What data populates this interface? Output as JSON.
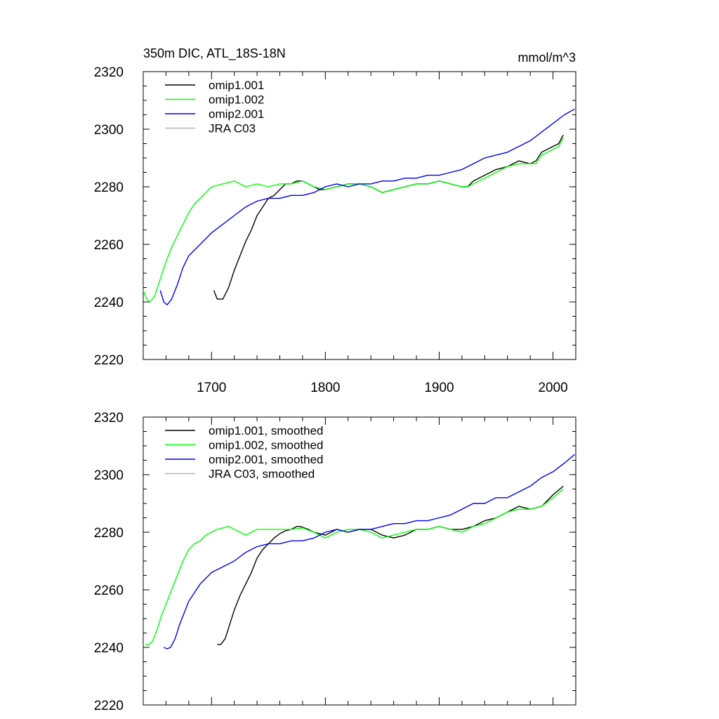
{
  "chart_data": [
    {
      "type": "line",
      "title": "350m DIC, ATL_18S-18N",
      "units": "mmol/m^3",
      "xlim": [
        1640,
        2020
      ],
      "ylim": [
        2220,
        2320
      ],
      "xticks": [
        "1700",
        "1800",
        "1900",
        "2000"
      ],
      "yticks": [
        "2220",
        "2240",
        "2260",
        "2280",
        "2300",
        "2320"
      ],
      "legend": [
        "omip1.001",
        "omip1.002",
        "omip2.001",
        "JRA C03"
      ],
      "series": [
        {
          "name": "omip1.001",
          "color": "#000000",
          "x": [
            1702,
            1705,
            1710,
            1715,
            1720,
            1725,
            1730,
            1735,
            1740,
            1745,
            1750,
            1755,
            1760,
            1765,
            1770,
            1775,
            1780,
            1785,
            1790,
            1795,
            1800,
            1810,
            1820,
            1830,
            1840,
            1850,
            1860,
            1870,
            1880,
            1890,
            1900,
            1910,
            1920,
            1925,
            1930,
            1940,
            1950,
            1960,
            1970,
            1980,
            1985,
            1990,
            2000,
            2005,
            2009
          ],
          "y": [
            2244,
            2241,
            2241,
            2245,
            2251,
            2256,
            2261,
            2265,
            2270,
            2273,
            2276,
            2277,
            2279,
            2281,
            2281,
            2282,
            2282,
            2281,
            2280,
            2279,
            2279,
            2280,
            2281,
            2281,
            2280,
            2278,
            2279,
            2280,
            2281,
            2281,
            2282,
            2281,
            2280,
            2280,
            2282,
            2284,
            2286,
            2287,
            2289,
            2288,
            2289,
            2292,
            2294,
            2295,
            2298
          ]
        },
        {
          "name": "omip1.002",
          "color": "#00ff00",
          "x": [
            1640,
            1643,
            1646,
            1650,
            1655,
            1660,
            1665,
            1670,
            1675,
            1680,
            1685,
            1690,
            1695,
            1700,
            1710,
            1720,
            1730,
            1740,
            1750,
            1760,
            1770,
            1780,
            1790,
            1800,
            1810,
            1820,
            1830,
            1840,
            1850,
            1860,
            1870,
            1880,
            1890,
            1900,
            1910,
            1920,
            1925,
            1930,
            1940,
            1950,
            1960,
            1970,
            1980,
            1985,
            1990,
            2000,
            2005,
            2009
          ],
          "y": [
            2244,
            2241,
            2240,
            2242,
            2248,
            2254,
            2259,
            2263,
            2267,
            2271,
            2274,
            2276,
            2278,
            2280,
            2281,
            2282,
            2280,
            2281,
            2280,
            2281,
            2281,
            2282,
            2280,
            2279,
            2280,
            2281,
            2281,
            2280,
            2278,
            2279,
            2280,
            2281,
            2281,
            2282,
            2281,
            2280,
            2280,
            2281,
            2283,
            2285,
            2287,
            2288,
            2288,
            2288,
            2291,
            2293,
            2294,
            2297
          ]
        },
        {
          "name": "omip2.001",
          "color": "#0000ee",
          "x": [
            1655,
            1658,
            1661,
            1665,
            1670,
            1675,
            1680,
            1690,
            1700,
            1710,
            1720,
            1730,
            1740,
            1750,
            1760,
            1770,
            1780,
            1790,
            1800,
            1810,
            1820,
            1830,
            1840,
            1850,
            1860,
            1870,
            1880,
            1890,
            1900,
            1910,
            1920,
            1930,
            1940,
            1950,
            1960,
            1970,
            1980,
            1990,
            2000,
            2010,
            2019
          ],
          "y": [
            2244,
            2240,
            2239,
            2241,
            2246,
            2252,
            2256,
            2260,
            2264,
            2267,
            2270,
            2273,
            2275,
            2276,
            2276,
            2277,
            2277,
            2278,
            2280,
            2281,
            2280,
            2281,
            2281,
            2282,
            2282,
            2283,
            2283,
            2284,
            2284,
            2285,
            2286,
            2288,
            2290,
            2291,
            2292,
            2294,
            2296,
            2299,
            2302,
            2305,
            2307
          ]
        },
        {
          "name": "JRA C03",
          "color": "#b4b4b4",
          "x": [],
          "y": []
        }
      ]
    },
    {
      "type": "line",
      "title": "",
      "units": "",
      "xlim": [
        1640,
        2020
      ],
      "ylim": [
        2220,
        2320
      ],
      "xticks": [],
      "yticks": [
        "2220",
        "2240",
        "2260",
        "2280",
        "2300",
        "2320"
      ],
      "legend": [
        "omip1.001, smoothed",
        "omip1.002, smoothed",
        "omip2.001, smoothed",
        "JRA C03, smoothed"
      ],
      "series": [
        {
          "name": "omip1.001, smoothed",
          "color": "#000000",
          "x": [
            1705,
            1708,
            1712,
            1716,
            1720,
            1725,
            1730,
            1735,
            1740,
            1745,
            1750,
            1755,
            1760,
            1765,
            1770,
            1775,
            1778,
            1785,
            1790,
            1800,
            1810,
            1820,
            1830,
            1840,
            1850,
            1860,
            1870,
            1880,
            1890,
            1900,
            1910,
            1920,
            1930,
            1940,
            1950,
            1960,
            1970,
            1980,
            1990,
            2000,
            2009
          ],
          "y": [
            2241,
            2241,
            2243,
            2248,
            2253,
            2258,
            2262,
            2266,
            2271,
            2274,
            2276,
            2278,
            2279.5,
            2280.5,
            2281,
            2282,
            2282,
            2281,
            2280,
            2279,
            2281,
            2280,
            2281,
            2281,
            2279,
            2278,
            2279,
            2281,
            2281,
            2282,
            2281,
            2281,
            2282,
            2284,
            2285,
            2287,
            2289,
            2288,
            2289,
            2293,
            2296
          ]
        },
        {
          "name": "omip1.002, smoothed",
          "color": "#00ff00",
          "x": [
            1642,
            1645,
            1648,
            1652,
            1656,
            1660,
            1665,
            1670,
            1675,
            1680,
            1685,
            1690,
            1695,
            1700,
            1705,
            1710,
            1715,
            1720,
            1730,
            1740,
            1750,
            1760,
            1770,
            1780,
            1790,
            1800,
            1810,
            1820,
            1830,
            1840,
            1850,
            1860,
            1870,
            1880,
            1890,
            1900,
            1910,
            1920,
            1930,
            1940,
            1950,
            1960,
            1970,
            1980,
            1990,
            2000,
            2009
          ],
          "y": [
            2241,
            2241,
            2242,
            2246,
            2251,
            2255,
            2260,
            2265,
            2270,
            2274,
            2276,
            2277,
            2279,
            2280,
            2281,
            2281.5,
            2282,
            2281,
            2279,
            2281,
            2281,
            2281,
            2281,
            2281.5,
            2280,
            2278,
            2280,
            2281,
            2281,
            2280,
            2278,
            2279,
            2280,
            2281,
            2281,
            2282,
            2281,
            2280,
            2282,
            2283,
            2285,
            2287,
            2288,
            2288,
            2289,
            2292,
            2295
          ]
        },
        {
          "name": "omip2.001, smoothed",
          "color": "#0000ee",
          "x": [
            1658,
            1661,
            1664,
            1668,
            1672,
            1676,
            1680,
            1685,
            1690,
            1695,
            1700,
            1705,
            1710,
            1720,
            1730,
            1740,
            1750,
            1760,
            1770,
            1780,
            1790,
            1800,
            1810,
            1820,
            1830,
            1840,
            1850,
            1860,
            1870,
            1880,
            1890,
            1900,
            1910,
            1920,
            1930,
            1940,
            1950,
            1960,
            1970,
            1980,
            1990,
            2000,
            2010,
            2019
          ],
          "y": [
            2240,
            2239.5,
            2240,
            2243,
            2248,
            2252,
            2256,
            2259,
            2262,
            2264,
            2266,
            2267,
            2268,
            2270,
            2273,
            2275,
            2276,
            2276,
            2277,
            2277,
            2278,
            2280,
            2281,
            2280,
            2281,
            2281,
            2282,
            2283,
            2283,
            2284,
            2284,
            2285,
            2286,
            2288,
            2290,
            2290,
            2292,
            2292,
            2294,
            2296,
            2299,
            2301,
            2304,
            2307
          ]
        },
        {
          "name": "JRA C03, smoothed",
          "color": "#b4b4b4",
          "x": [],
          "y": []
        }
      ]
    }
  ]
}
